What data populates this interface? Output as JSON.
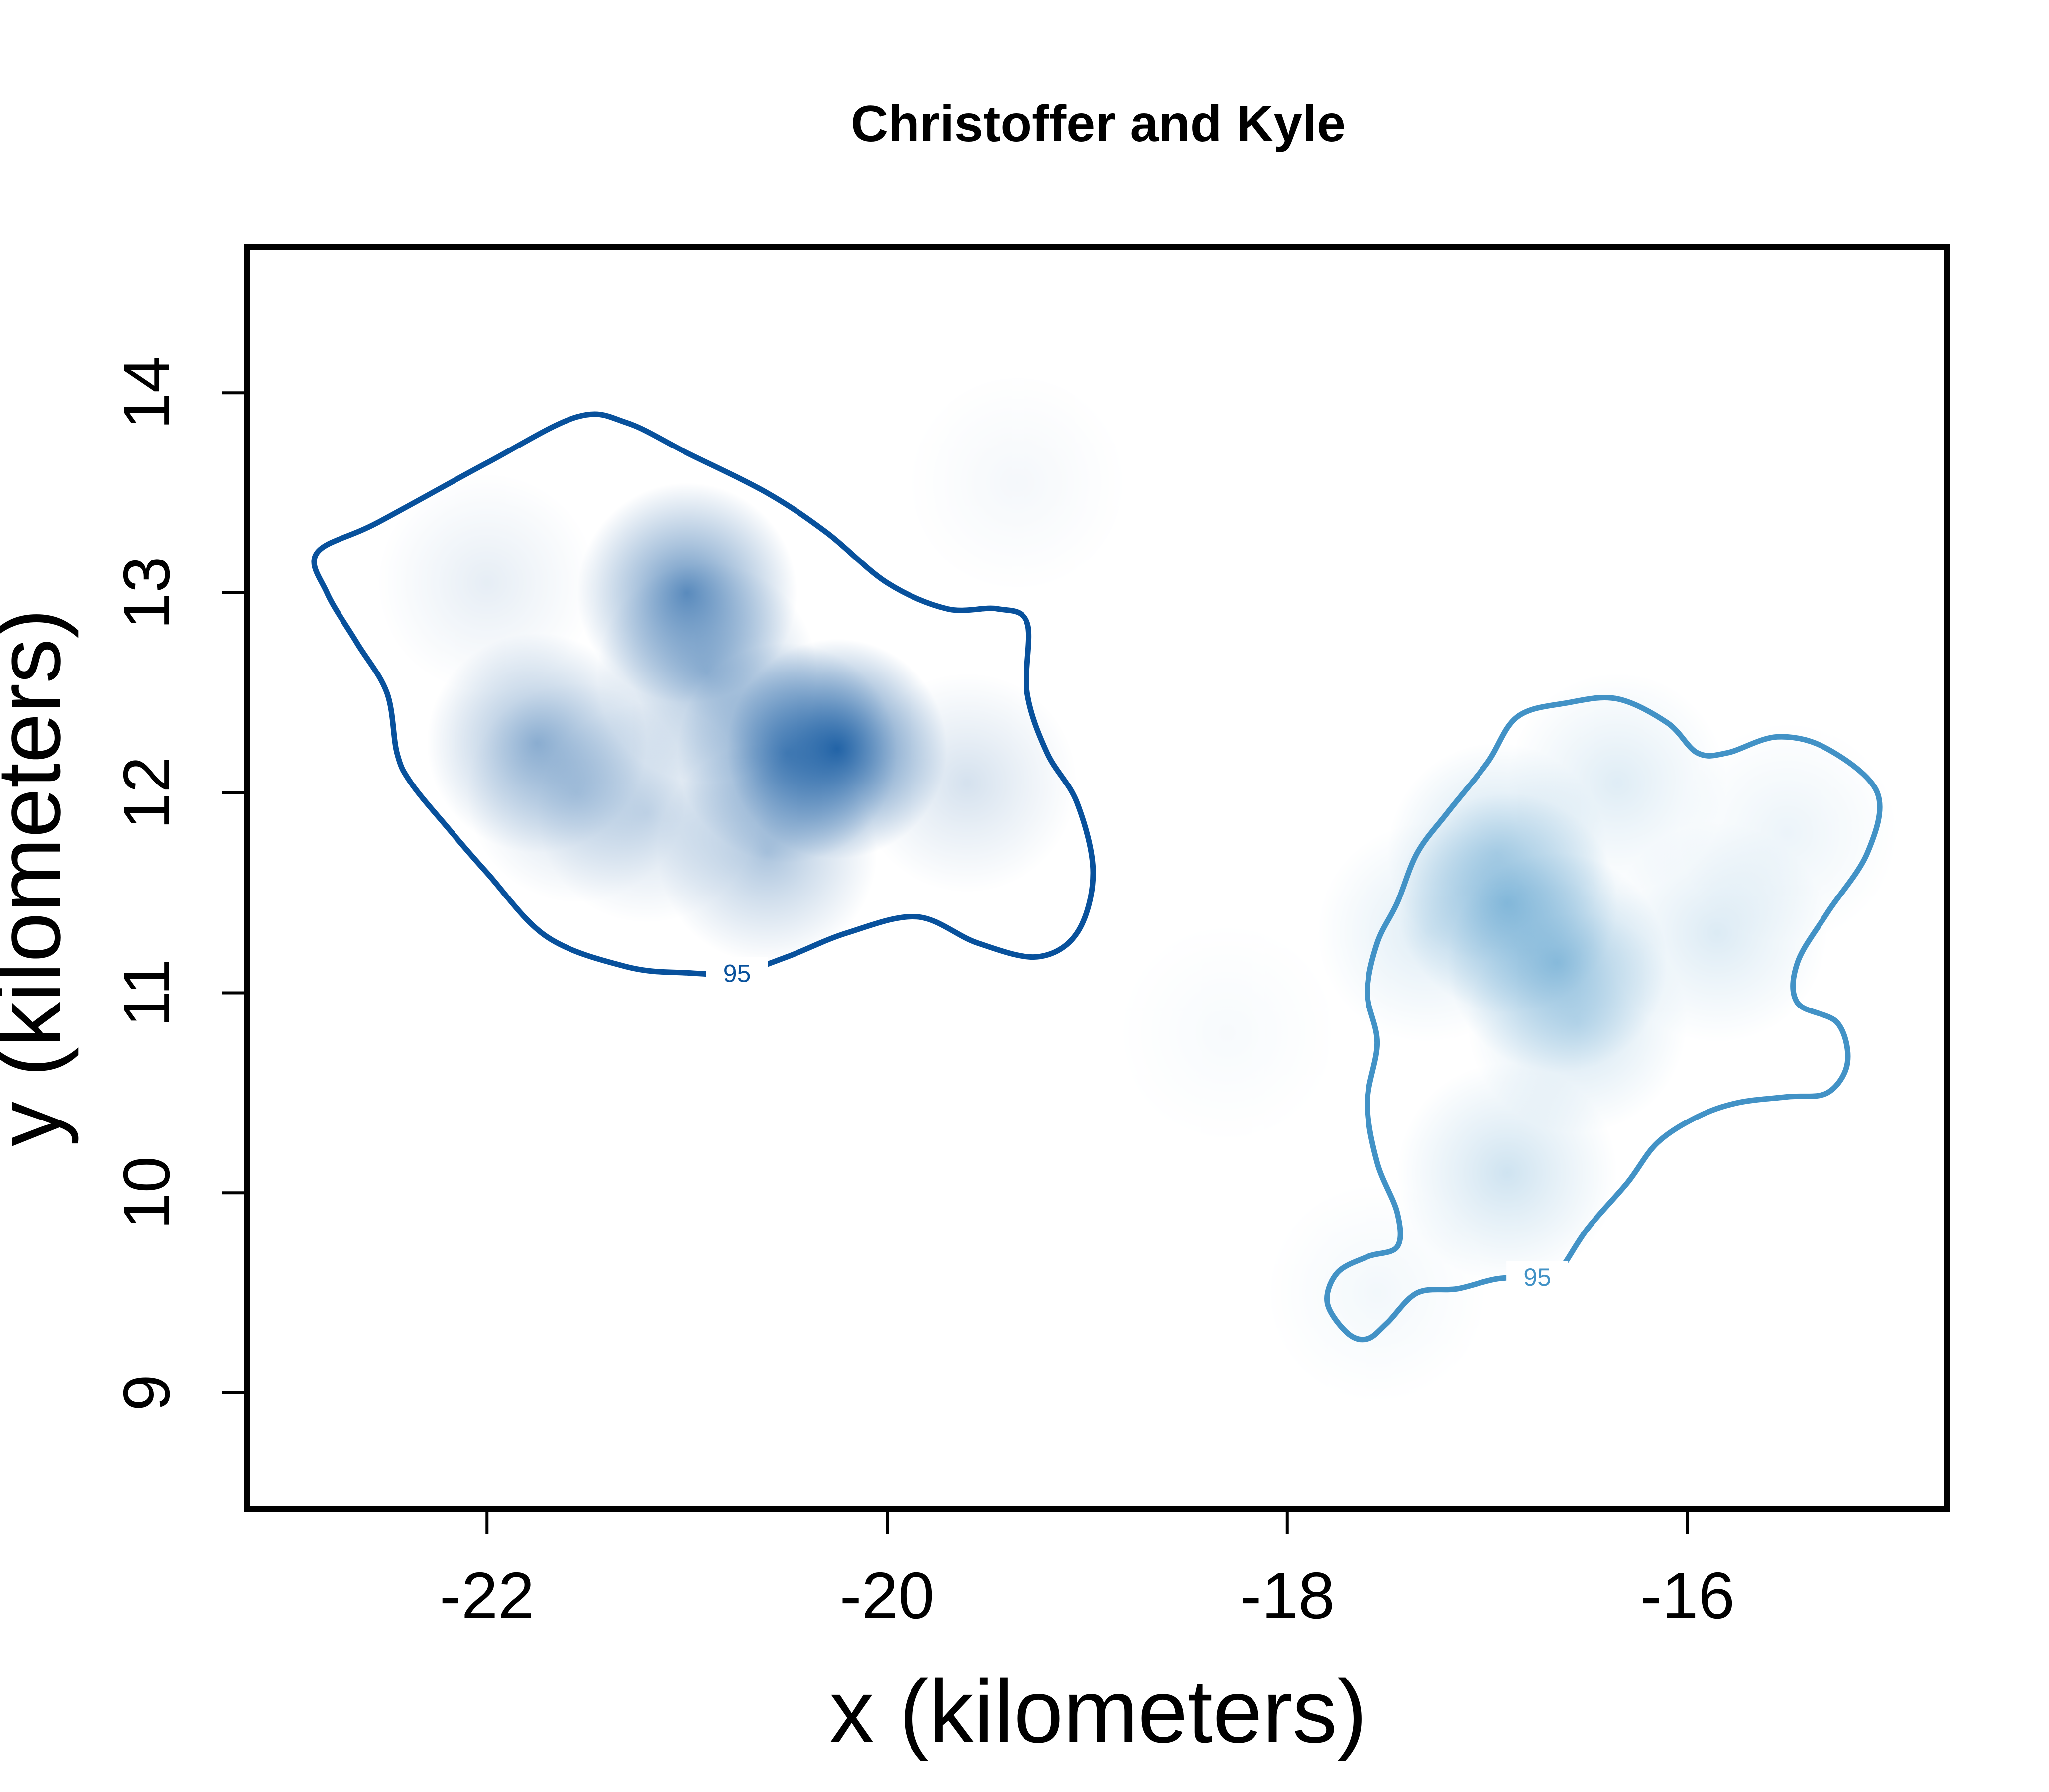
{
  "chart_data": {
    "type": "heatmap",
    "title": "Christoffer and Kyle",
    "xlabel": "x (kilometers)",
    "ylabel": "y (kilometers)",
    "xlim": [
      -23.2,
      -14.7
    ],
    "ylim": [
      8.42,
      14.73
    ],
    "xticks": [
      -22,
      -20,
      -18,
      -16
    ],
    "yticks": [
      9,
      10,
      11,
      12,
      13,
      14
    ],
    "xtick_labels": [
      "-22",
      "-20",
      "-18",
      "-16"
    ],
    "ytick_labels": [
      "9",
      "10",
      "11",
      "12",
      "13",
      "14"
    ],
    "grid": false,
    "legend": "none",
    "series": [
      {
        "color": "#08519c",
        "contour_label": "95",
        "density_peaks": [
          {
            "x": -20.25,
            "y": 12.22,
            "strength": 1.0
          },
          {
            "x": -20.5,
            "y": 12.2,
            "strength": 0.7
          },
          {
            "x": -21.0,
            "y": 13.0,
            "strength": 0.75
          },
          {
            "x": -20.9,
            "y": 12.6,
            "strength": 0.45
          },
          {
            "x": -21.75,
            "y": 12.25,
            "strength": 0.5
          },
          {
            "x": -21.55,
            "y": 12.0,
            "strength": 0.25
          },
          {
            "x": -20.6,
            "y": 11.7,
            "strength": 0.4
          },
          {
            "x": -21.2,
            "y": 11.9,
            "strength": 0.25
          },
          {
            "x": -22.0,
            "y": 13.05,
            "strength": 0.12
          },
          {
            "x": -19.6,
            "y": 12.05,
            "strength": 0.2
          },
          {
            "x": -19.35,
            "y": 13.55,
            "strength": 0.05
          }
        ],
        "contour_95": [
          [
            -22.55,
            13.35
          ],
          [
            -22.0,
            13.65
          ],
          [
            -21.55,
            13.88
          ],
          [
            -21.3,
            13.85
          ],
          [
            -21.0,
            13.7
          ],
          [
            -20.6,
            13.5
          ],
          [
            -20.3,
            13.3
          ],
          [
            -20.0,
            13.05
          ],
          [
            -19.7,
            12.92
          ],
          [
            -19.45,
            12.92
          ],
          [
            -19.3,
            12.85
          ],
          [
            -19.3,
            12.5
          ],
          [
            -19.2,
            12.2
          ],
          [
            -19.05,
            11.95
          ],
          [
            -18.97,
            11.6
          ],
          [
            -19.05,
            11.3
          ],
          [
            -19.25,
            11.18
          ],
          [
            -19.55,
            11.25
          ],
          [
            -19.85,
            11.38
          ],
          [
            -20.2,
            11.3
          ],
          [
            -20.5,
            11.18
          ],
          [
            -20.75,
            11.1
          ],
          [
            -21.0,
            11.1
          ],
          [
            -21.3,
            11.13
          ],
          [
            -21.7,
            11.28
          ],
          [
            -22.0,
            11.6
          ],
          [
            -22.2,
            11.83
          ],
          [
            -22.38,
            12.05
          ],
          [
            -22.45,
            12.2
          ],
          [
            -22.5,
            12.5
          ],
          [
            -22.65,
            12.75
          ],
          [
            -22.8,
            13.0
          ],
          [
            -22.85,
            13.2
          ]
        ]
      },
      {
        "color": "#4292c6",
        "contour_label": "95",
        "density_peaks": [
          {
            "x": -16.65,
            "y": 11.15,
            "strength": 0.62
          },
          {
            "x": -16.9,
            "y": 11.45,
            "strength": 0.6
          },
          {
            "x": -16.95,
            "y": 11.7,
            "strength": 0.35
          },
          {
            "x": -16.55,
            "y": 10.85,
            "strength": 0.3
          },
          {
            "x": -16.9,
            "y": 10.1,
            "strength": 0.3
          },
          {
            "x": -16.35,
            "y": 12.05,
            "strength": 0.2
          },
          {
            "x": -15.85,
            "y": 11.3,
            "strength": 0.22
          },
          {
            "x": -15.5,
            "y": 11.8,
            "strength": 0.12
          },
          {
            "x": -17.3,
            "y": 11.3,
            "strength": 0.2
          },
          {
            "x": -17.55,
            "y": 9.5,
            "strength": 0.08
          },
          {
            "x": -18.3,
            "y": 10.8,
            "strength": 0.05
          }
        ],
        "contour_95": [
          [
            -17.0,
            12.15
          ],
          [
            -16.85,
            12.38
          ],
          [
            -16.6,
            12.45
          ],
          [
            -16.35,
            12.47
          ],
          [
            -16.1,
            12.35
          ],
          [
            -15.95,
            12.2
          ],
          [
            -15.8,
            12.2
          ],
          [
            -15.55,
            12.28
          ],
          [
            -15.3,
            12.22
          ],
          [
            -15.05,
            12.0
          ],
          [
            -15.1,
            11.7
          ],
          [
            -15.3,
            11.4
          ],
          [
            -15.45,
            11.15
          ],
          [
            -15.45,
            10.95
          ],
          [
            -15.25,
            10.85
          ],
          [
            -15.2,
            10.65
          ],
          [
            -15.3,
            10.5
          ],
          [
            -15.5,
            10.48
          ],
          [
            -15.75,
            10.45
          ],
          [
            -15.95,
            10.38
          ],
          [
            -16.15,
            10.25
          ],
          [
            -16.3,
            10.05
          ],
          [
            -16.5,
            9.82
          ],
          [
            -16.65,
            9.6
          ],
          [
            -16.75,
            9.58
          ],
          [
            -16.95,
            9.57
          ],
          [
            -17.15,
            9.52
          ],
          [
            -17.35,
            9.5
          ],
          [
            -17.5,
            9.35
          ],
          [
            -17.6,
            9.27
          ],
          [
            -17.7,
            9.3
          ],
          [
            -17.8,
            9.45
          ],
          [
            -17.75,
            9.6
          ],
          [
            -17.6,
            9.68
          ],
          [
            -17.45,
            9.73
          ],
          [
            -17.45,
            9.9
          ],
          [
            -17.55,
            10.15
          ],
          [
            -17.6,
            10.45
          ],
          [
            -17.55,
            10.75
          ],
          [
            -17.6,
            11.0
          ],
          [
            -17.55,
            11.25
          ],
          [
            -17.45,
            11.45
          ],
          [
            -17.35,
            11.7
          ],
          [
            -17.2,
            11.9
          ]
        ]
      }
    ]
  }
}
